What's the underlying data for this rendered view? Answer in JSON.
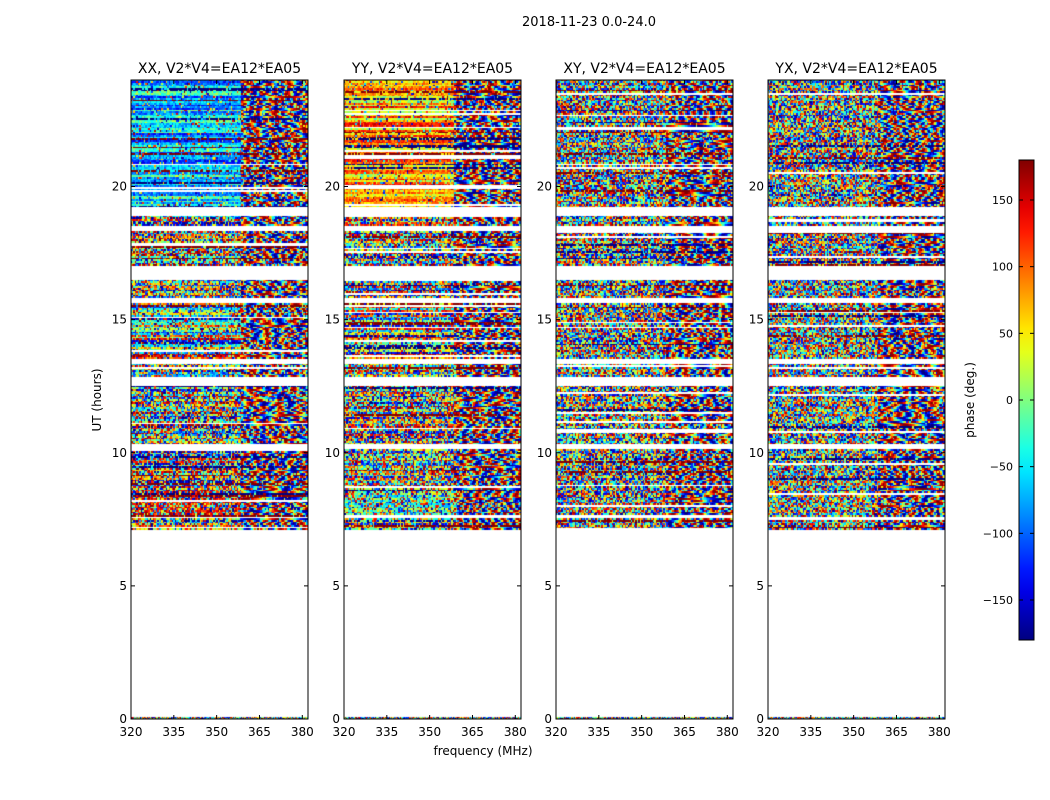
{
  "chart_data": {
    "type": "heatmap",
    "suptitle": "2018-11-23 0.0-24.0",
    "xlabel": "frequency (MHz)",
    "ylabel": "UT (hours)",
    "xlim": [
      320,
      382
    ],
    "ylim": [
      0,
      24
    ],
    "xticks": [
      320,
      335,
      350,
      365,
      380
    ],
    "yticks": [
      0,
      5,
      10,
      15,
      20
    ],
    "colormap": "jet",
    "colorbar": {
      "label": "phase (deg.)",
      "min": -180,
      "max": 180,
      "ticks": [
        150,
        100,
        50,
        0,
        -50,
        -100,
        -150
      ],
      "tick_labels": [
        "150",
        "100",
        "50",
        "0",
        "−50",
        "−100",
        "−150"
      ]
    },
    "panels": [
      {
        "title": "XX, V2*V4=EA12*EA05",
        "seed": 11,
        "mode": "xx"
      },
      {
        "title": "YY, V2*V4=EA12*EA05",
        "seed": 23,
        "mode": "yy"
      },
      {
        "title": "XY, V2*V4=EA12*EA05",
        "seed": 37,
        "mode": "xy"
      },
      {
        "title": "YX, V2*V4=EA12*EA05",
        "seed": 53,
        "mode": "yx"
      }
    ],
    "data_ut_ranges_hours": [
      [
        7.1,
        7.5
      ],
      [
        7.6,
        18.9
      ],
      [
        19.2,
        24.0
      ]
    ],
    "data_gaps_hours": [
      [
        13.3,
        13.5
      ],
      [
        15.6,
        15.8
      ],
      [
        16.5,
        17.0
      ],
      [
        18.3,
        18.5
      ],
      [
        12.5,
        12.8
      ],
      [
        10.1,
        10.3
      ]
    ]
  }
}
